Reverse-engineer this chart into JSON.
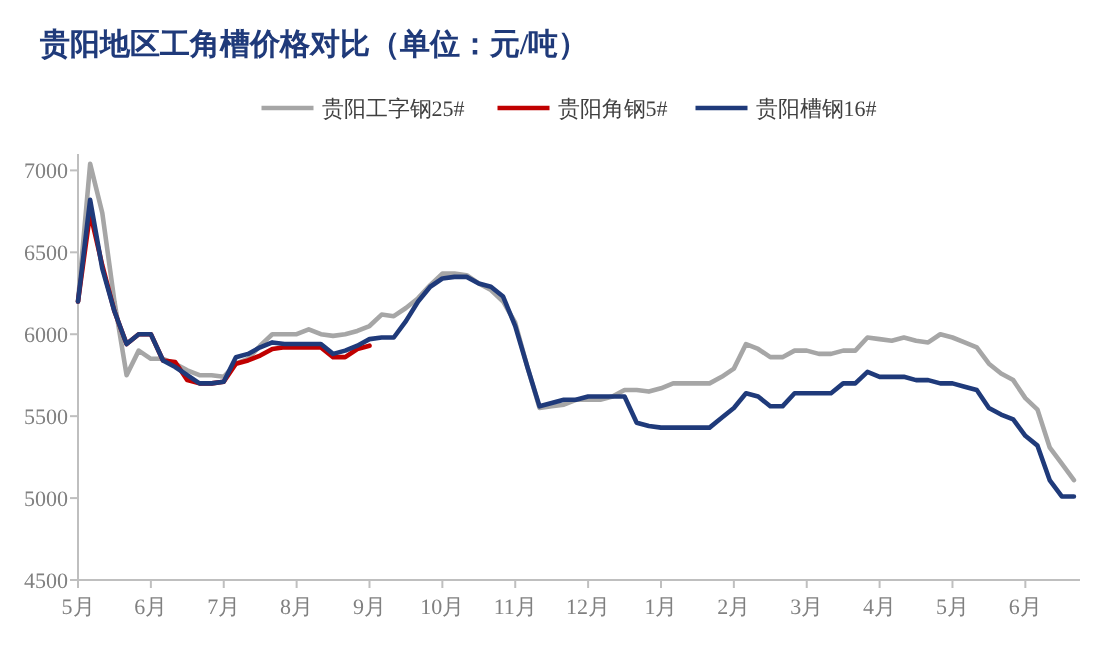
{
  "chart_data": {
    "type": "line",
    "title": "贵阳地区工角槽价格对比（单位：元/吨）",
    "categories": [
      "5月",
      null,
      null,
      null,
      null,
      null,
      "6月",
      null,
      null,
      null,
      null,
      null,
      "7月",
      null,
      null,
      null,
      null,
      null,
      "8月",
      null,
      null,
      null,
      null,
      null,
      "9月",
      null,
      null,
      null,
      null,
      null,
      "10月",
      null,
      null,
      null,
      null,
      null,
      "11月",
      null,
      null,
      null,
      null,
      null,
      "12月",
      null,
      null,
      null,
      null,
      null,
      "1月",
      null,
      null,
      null,
      null,
      null,
      "2月",
      null,
      null,
      null,
      null,
      null,
      "3月",
      null,
      null,
      null,
      null,
      null,
      "4月",
      null,
      null,
      null,
      null,
      null,
      "5月",
      null,
      null,
      null,
      null,
      null,
      "6月",
      null,
      null,
      null,
      null
    ],
    "ylim": [
      4500,
      7100
    ],
    "yticks": [
      4500,
      5000,
      5500,
      6000,
      6500,
      7000
    ],
    "grid": false,
    "legend": "top",
    "marker": "none",
    "line_style": "solid",
    "series": [
      {
        "name": "贵阳工字钢25#",
        "color": "#a6a6a6",
        "values": [
          6200,
          7040,
          6740,
          6200,
          5750,
          5900,
          5850,
          5850,
          5820,
          5780,
          5750,
          5750,
          5740,
          5820,
          5850,
          5930,
          6000,
          6000,
          6000,
          6030,
          6000,
          5990,
          6000,
          6020,
          6050,
          6120,
          6110,
          6160,
          6220,
          6300,
          6370,
          6370,
          6360,
          6310,
          6270,
          6200,
          6070,
          5800,
          5550,
          5560,
          5570,
          5600,
          5600,
          5600,
          5620,
          5660,
          5660,
          5650,
          5670,
          5700,
          5700,
          5700,
          5700,
          5740,
          5790,
          5940,
          5910,
          5860,
          5860,
          5900,
          5900,
          5880,
          5880,
          5900,
          5900,
          5980,
          5970,
          5960,
          5980,
          5960,
          5950,
          6000,
          5980,
          5950,
          5920,
          5820,
          5760,
          5720,
          5610,
          5540,
          5310,
          5210,
          5110
        ]
      },
      {
        "name": "贵阳角钢5#",
        "color": "#c00000",
        "values": [
          6200,
          6740,
          6420,
          6140,
          5940,
          6000,
          6000,
          5840,
          5830,
          5720,
          5700,
          5700,
          5710,
          5820,
          5840,
          5870,
          5910,
          5920,
          5920,
          5920,
          5920,
          5860,
          5860,
          5910,
          5930,
          null,
          null,
          null,
          null,
          null,
          null,
          null,
          null,
          null,
          null,
          null,
          null,
          null,
          null,
          null,
          null,
          null,
          null,
          null,
          null,
          null,
          null,
          null,
          null,
          null,
          null,
          null,
          null,
          null,
          null,
          null,
          null,
          null,
          null,
          null,
          null,
          null,
          null,
          null,
          null,
          null,
          null,
          null,
          null,
          null,
          null,
          null,
          null,
          null,
          null,
          null,
          null,
          null,
          null,
          null,
          null,
          null,
          null
        ]
      },
      {
        "name": "贵阳槽钢16#",
        "color": "#1f3a7a",
        "values": [
          6200,
          6820,
          6400,
          6140,
          5940,
          6000,
          6000,
          5840,
          5800,
          5750,
          5700,
          5700,
          5710,
          5860,
          5880,
          5920,
          5950,
          5940,
          5940,
          5940,
          5940,
          5880,
          5900,
          5930,
          5970,
          5980,
          5980,
          6080,
          6200,
          6290,
          6340,
          6350,
          6350,
          6310,
          6290,
          6230,
          6050,
          5800,
          5560,
          5580,
          5600,
          5600,
          5620,
          5620,
          5620,
          5620,
          5460,
          5440,
          5430,
          5430,
          5430,
          5430,
          5430,
          5490,
          5550,
          5640,
          5620,
          5560,
          5560,
          5640,
          5640,
          5640,
          5640,
          5700,
          5700,
          5770,
          5740,
          5740,
          5740,
          5720,
          5720,
          5700,
          5700,
          5680,
          5660,
          5550,
          5510,
          5480,
          5380,
          5320,
          5110,
          5010,
          5010
        ]
      }
    ]
  }
}
